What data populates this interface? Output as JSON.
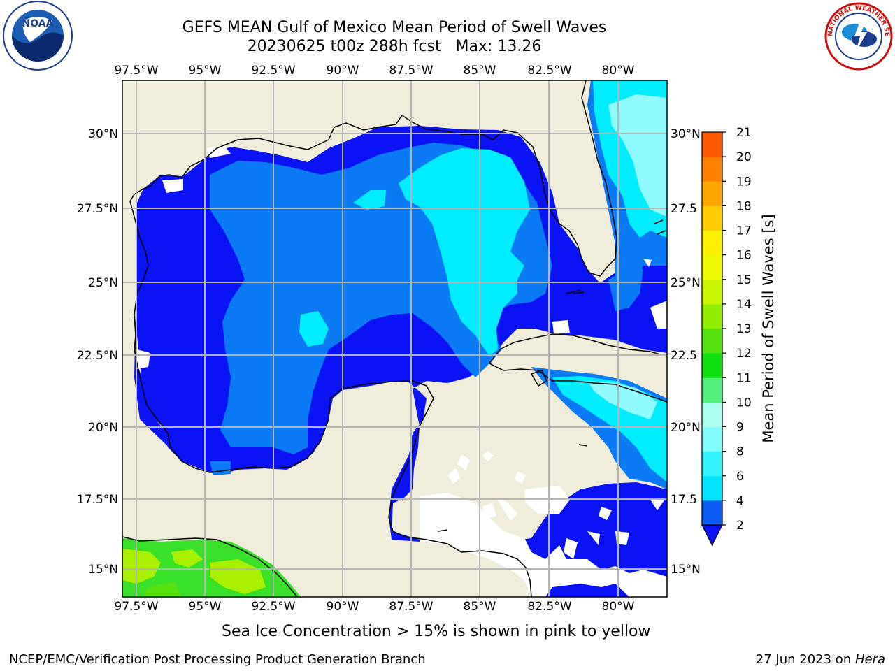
{
  "title": {
    "line1": "GEFS MEAN Gulf of Mexico Mean Period of Swell Waves",
    "line2": "20230625 t00z 288h fcst   Max: 13.26"
  },
  "logos": {
    "left": "NOAA",
    "right_text": "NATIONAL WEATHER SERVICE"
  },
  "map": {
    "lon_labels": [
      "97.5°W",
      "95°W",
      "92.5°W",
      "90°W",
      "87.5°W",
      "85°W",
      "82.5°W",
      "80°W"
    ],
    "lat_labels_left": [
      "30°N",
      "27.5°N",
      "25°N",
      "22.5°N",
      "20°N",
      "17.5°N",
      "15°N"
    ],
    "lat_labels_right": [
      "30°N",
      "27.5",
      "25°N",
      "22.5",
      "20°N",
      "17.5",
      "15°N"
    ]
  },
  "colorbar": {
    "label": "Mean Period of Swell Waves [s]",
    "ticks": [
      "2",
      "4",
      "6",
      "8",
      "9",
      "10",
      "11",
      "12",
      "13",
      "14",
      "15",
      "16",
      "17",
      "18",
      "19",
      "20",
      "21"
    ],
    "colors": [
      "#0a5cf5",
      "#00e5ff",
      "#33f3ff",
      "#80fbff",
      "#aafff0",
      "#50f07a",
      "#10e010",
      "#55e010",
      "#90ee00",
      "#c8f500",
      "#eef800",
      "#fff000",
      "#ffcc00",
      "#ffa500",
      "#ff8000",
      "#ff5a00",
      "#ff2a00",
      "#ff0000"
    ]
  },
  "caption": "Sea Ice Concentration > 15% is shown in pink to yellow",
  "footer": {
    "left": "NCEP/EMC/Verification Post Processing Product Generation Branch",
    "right_date": "27 Jun 2023 on ",
    "right_machine": "Hera"
  }
}
